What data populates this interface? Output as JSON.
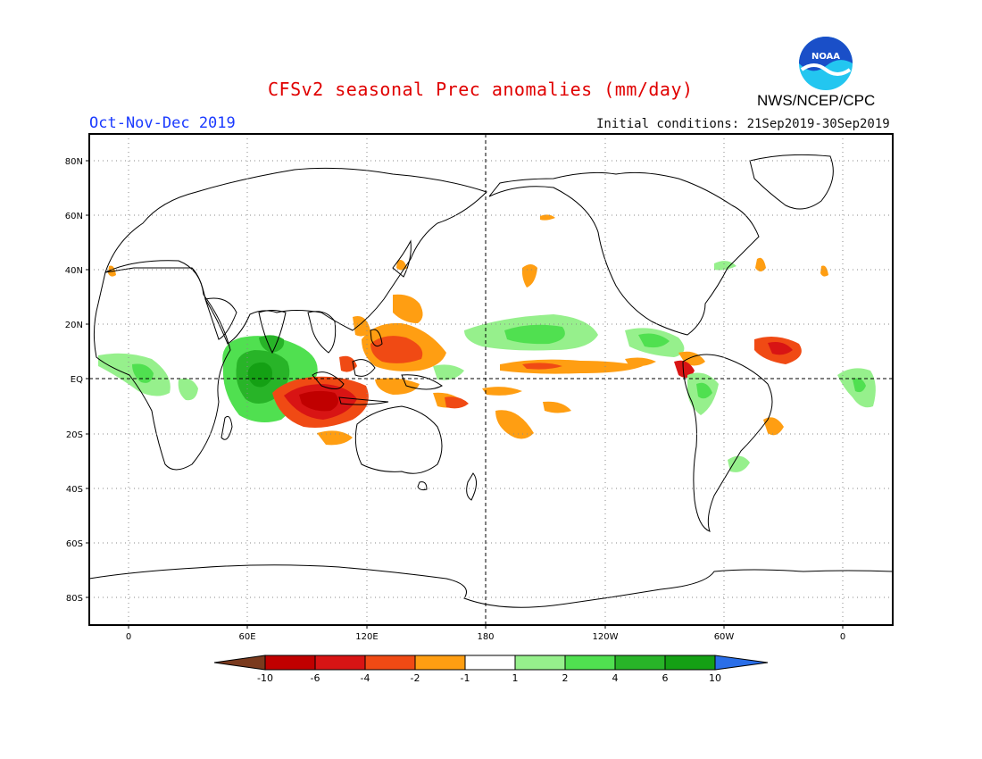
{
  "header": {
    "title": "CFSv2 seasonal Prec anomalies (mm/day)",
    "period": "Oct-Nov-Dec 2019",
    "initial_conditions": "Initial conditions: 21Sep2019-30Sep2019",
    "agency": "NWS/NCEP/CPC",
    "logo_text": "NOAA"
  },
  "axes": {
    "lat_labels": [
      "80N",
      "60N",
      "40N",
      "20N",
      "EQ",
      "20S",
      "40S",
      "60S",
      "80S"
    ],
    "lon_labels": [
      "0",
      "60E",
      "120E",
      "180",
      "120W",
      "60W",
      "0"
    ]
  },
  "legend": {
    "labels": [
      "-10",
      "-6",
      "-4",
      "-2",
      "-1",
      "1",
      "2",
      "4",
      "6",
      "10"
    ],
    "colors": {
      "lt_m10": "#7a3a1e",
      "m10_m6": "#c00000",
      "m6_m4": "#d81414",
      "m4_m2": "#f04a14",
      "m2_m1": "#ff9e12",
      "m1_1": "#ffffff",
      "p1_2": "#96f08c",
      "p2_4": "#50e050",
      "p4_6": "#28b428",
      "p6_10": "#14a014",
      "gt_10": "#2a6ee8"
    }
  },
  "colors": {
    "title": "#e00000",
    "period": "#1a3aff",
    "logo_blue": "#1a4fc8",
    "logo_sky": "#23c6f0"
  }
}
